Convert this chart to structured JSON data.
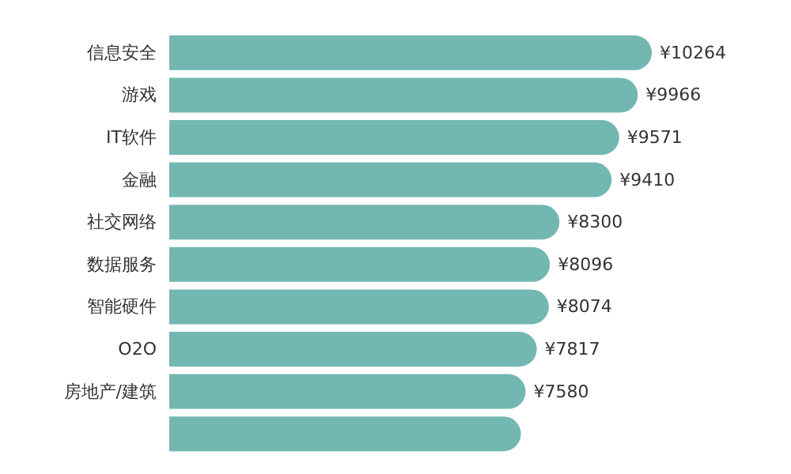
{
  "chart_data": {
    "type": "bar",
    "orientation": "horizontal",
    "tick_labels": "y",
    "categories": [
      "信息安全",
      "游戏",
      "IT软件",
      "金融",
      "社交网络",
      "数据服务",
      "智能硬件",
      "O2O",
      "房地产/建筑",
      null
    ],
    "values": [
      10264,
      9966,
      9571,
      9410,
      8300,
      8096,
      8074,
      7817,
      7580,
      7480
    ],
    "value_labels": [
      "¥10264",
      "¥9966",
      "¥9571",
      "¥9410",
      "¥8300",
      "¥8096",
      "¥8074",
      "¥7817",
      "¥7580",
      null
    ],
    "color": "#72b7b2"
  }
}
